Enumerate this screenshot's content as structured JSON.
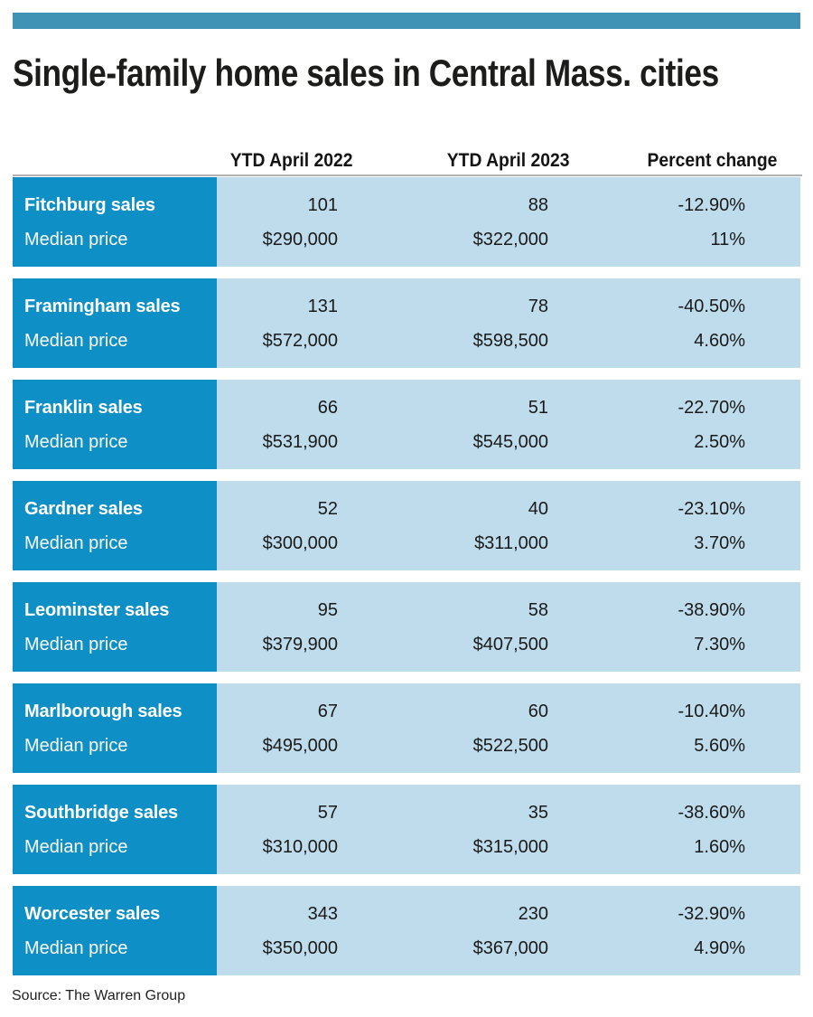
{
  "colors": {
    "top_bar": "#4093b5",
    "row_label_bg": "#0e8fc5",
    "row_data_bg": "#bedcec",
    "title_text": "#1c1c1a",
    "label_text": "#ffffff"
  },
  "chart_data": {
    "type": "table",
    "title": "Single-family home sales in Central Mass. cities",
    "columns": [
      "YTD April 2022",
      "YTD April 2023",
      "Percent change"
    ],
    "median_price_label": "Median price",
    "row_groups": [
      {
        "label": "Fitchburg sales",
        "sales": [
          "101",
          "88",
          "-12.90%"
        ],
        "median": [
          "$290,000",
          "$322,000",
          "11%"
        ]
      },
      {
        "label": "Framingham sales",
        "sales": [
          "131",
          "78",
          "-40.50%"
        ],
        "median": [
          "$572,000",
          "$598,500",
          "4.60%"
        ]
      },
      {
        "label": "Franklin sales",
        "sales": [
          "66",
          "51",
          "-22.70%"
        ],
        "median": [
          "$531,900",
          "$545,000",
          "2.50%"
        ]
      },
      {
        "label": "Gardner sales",
        "sales": [
          "52",
          "40",
          "-23.10%"
        ],
        "median": [
          "$300,000",
          "$311,000",
          "3.70%"
        ]
      },
      {
        "label": "Leominster sales",
        "sales": [
          "95",
          "58",
          "-38.90%"
        ],
        "median": [
          "$379,900",
          "$407,500",
          "7.30%"
        ]
      },
      {
        "label": "Marlborough sales",
        "sales": [
          "67",
          "60",
          "-10.40%"
        ],
        "median": [
          "$495,000",
          "$522,500",
          "5.60%"
        ]
      },
      {
        "label": "Southbridge sales",
        "sales": [
          "57",
          "35",
          "-38.60%"
        ],
        "median": [
          "$310,000",
          "$315,000",
          "1.60%"
        ]
      },
      {
        "label": "Worcester sales",
        "sales": [
          "343",
          "230",
          "-32.90%"
        ],
        "median": [
          "$350,000",
          "$367,000",
          "4.90%"
        ]
      }
    ],
    "source": "Source: The Warren Group"
  }
}
